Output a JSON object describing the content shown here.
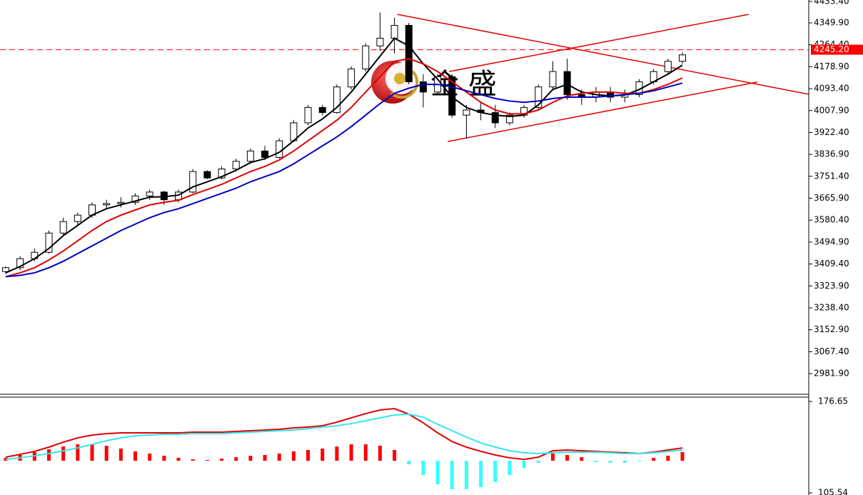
{
  "chart_data": [
    {
      "type": "candlestick",
      "open": [
        3380,
        3395,
        3430,
        3455,
        3530,
        3575,
        3600,
        3640,
        3645,
        3650,
        3675,
        3690,
        3660,
        3690,
        3770,
        3745,
        3780,
        3810,
        3850,
        3825,
        3890,
        3960,
        4020,
        4000,
        4100,
        4170,
        4260,
        4290,
        4340,
        4120,
        4080,
        4140,
        3990,
        4010,
        4000,
        3960,
        3990,
        4020,
        4100,
        4160,
        4070,
        4060,
        4080,
        4060,
        4070,
        4120,
        4160,
        4200
      ],
      "high": [
        3400,
        3440,
        3470,
        3540,
        3590,
        3610,
        3650,
        3660,
        3670,
        3685,
        3700,
        3695,
        3700,
        3780,
        3775,
        3790,
        3820,
        3860,
        3870,
        3900,
        3970,
        4030,
        4030,
        4110,
        4180,
        4270,
        4390,
        4370,
        4350,
        4150,
        4150,
        4150,
        4030,
        4040,
        4030,
        4000,
        4030,
        4110,
        4200,
        4210,
        4090,
        4100,
        4100,
        4090,
        4130,
        4170,
        4210,
        4235
      ],
      "low": [
        3370,
        3385,
        3420,
        3450,
        3520,
        3560,
        3590,
        3625,
        3630,
        3640,
        3660,
        3640,
        3650,
        3685,
        3740,
        3740,
        3770,
        3800,
        3815,
        3820,
        3885,
        3950,
        3990,
        3995,
        4090,
        4160,
        4240,
        4230,
        4110,
        4020,
        4070,
        3980,
        3900,
        3970,
        3940,
        3950,
        3980,
        4010,
        4090,
        4050,
        4030,
        4040,
        4040,
        4040,
        4060,
        4110,
        4150,
        4190
      ],
      "close": [
        3395,
        3430,
        3455,
        3530,
        3575,
        3600,
        3640,
        3645,
        3650,
        3675,
        3690,
        3660,
        3690,
        3770,
        3745,
        3780,
        3810,
        3850,
        3825,
        3890,
        3960,
        4020,
        4000,
        4100,
        4170,
        4260,
        4290,
        4340,
        4120,
        4080,
        4140,
        3990,
        4010,
        4000,
        3960,
        3990,
        4020,
        4100,
        4160,
        4070,
        4060,
        4080,
        4060,
        4070,
        4120,
        4160,
        4200,
        4225
      ],
      "up_color": "#ffffff",
      "down_color": "#000000",
      "series": [
        {
          "color": "#000000",
          "values": [
            3375,
            3400,
            3430,
            3470,
            3520,
            3560,
            3600,
            3625,
            3640,
            3655,
            3670,
            3672,
            3678,
            3710,
            3730,
            3750,
            3775,
            3805,
            3820,
            3845,
            3890,
            3940,
            3975,
            4020,
            4080,
            4150,
            4220,
            4290,
            4260,
            4190,
            4130,
            4060,
            4020,
            4000,
            3990,
            3985,
            3990,
            4030,
            4090,
            4110,
            4080,
            4070,
            4065,
            4068,
            4090,
            4120,
            4150,
            4185
          ]
        },
        {
          "color": "#e00000",
          "values": [
            3360,
            3375,
            3395,
            3425,
            3460,
            3500,
            3540,
            3575,
            3600,
            3620,
            3640,
            3650,
            3658,
            3680,
            3700,
            3720,
            3745,
            3770,
            3790,
            3815,
            3850,
            3890,
            3930,
            3970,
            4020,
            4080,
            4140,
            4200,
            4210,
            4190,
            4160,
            4120,
            4080,
            4040,
            4010,
            3995,
            3995,
            4010,
            4040,
            4065,
            4075,
            4080,
            4080,
            4075,
            4075,
            4090,
            4110,
            4135
          ]
        },
        {
          "color": "#0000c0",
          "values": [
            3360,
            3365,
            3375,
            3395,
            3420,
            3450,
            3480,
            3510,
            3540,
            3565,
            3590,
            3610,
            3625,
            3645,
            3665,
            3685,
            3705,
            3730,
            3750,
            3770,
            3800,
            3835,
            3870,
            3905,
            3945,
            3990,
            4035,
            4075,
            4095,
            4110,
            4110,
            4100,
            4085,
            4070,
            4055,
            4045,
            4040,
            4045,
            4055,
            4060,
            4060,
            4060,
            4065,
            4070,
            4075,
            4085,
            4100,
            4115
          ]
        }
      ],
      "trendlines": [
        {
          "color": "#e00000",
          "points": [
            [
              27.2,
              4383
            ],
            [
              55.8,
              4071
            ]
          ]
        },
        {
          "color": "#e00000",
          "points": [
            [
              30.7,
              3887
            ],
            [
              52.2,
              4119
            ]
          ]
        },
        {
          "color": "#e00000",
          "points": [
            [
              30.8,
              4160
            ],
            [
              51.6,
              4383
            ]
          ]
        }
      ],
      "price_line": {
        "value": 4245.2,
        "label": "4245.20",
        "color": "#ff0000"
      },
      "watermark": "金 盛",
      "ylim": [
        2901.3,
        4439.0
      ],
      "yticks": [
        {
          "value": 4433.4,
          "label": "4433.40"
        },
        {
          "value": 4349.9,
          "label": "4349.90"
        },
        {
          "value": 4264.4,
          "label": "4264.40"
        },
        {
          "value": 4178.9,
          "label": "4178.90"
        },
        {
          "value": 4093.4,
          "label": "4093.40"
        },
        {
          "value": 4007.9,
          "label": "4007.90"
        },
        {
          "value": 3922.4,
          "label": "3922.40"
        },
        {
          "value": 3836.9,
          "label": "3836.90"
        },
        {
          "value": 3751.4,
          "label": "3751.40"
        },
        {
          "value": 3665.9,
          "label": "3665.90"
        },
        {
          "value": 3580.4,
          "label": "3580.40"
        },
        {
          "value": 3494.9,
          "label": "3494.90"
        },
        {
          "value": 3409.4,
          "label": "3409.40"
        },
        {
          "value": 3323.9,
          "label": "3323.90"
        },
        {
          "value": 3238.4,
          "label": "3238.40"
        },
        {
          "value": 3152.9,
          "label": "3152.90"
        },
        {
          "value": 3067.4,
          "label": "3067.40"
        },
        {
          "value": 2981.9,
          "label": "2981.90"
        }
      ]
    },
    {
      "type": "macd",
      "histogram": {
        "baseline": 130.5,
        "up_color": "#ff0000",
        "down_color": "#33ffff",
        "values": [
          132.8,
          135.0,
          137.2,
          139.4,
          141.6,
          143.3,
          143.3,
          142.2,
          140.0,
          137.8,
          136.1,
          134.4,
          132.8,
          131.6,
          131.1,
          132.2,
          133.3,
          134.4,
          135.0,
          136.1,
          137.8,
          138.9,
          140.0,
          141.6,
          143.3,
          143.3,
          142.2,
          138.9,
          127.7,
          119.4,
          112.2,
          108.4,
          108.4,
          110.0,
          113.9,
          119.4,
          125.0,
          128.9,
          136.1,
          135.0,
          133.3,
          129.4,
          128.9,
          128.9,
          129.9,
          132.8,
          134.4,
          137.2
        ]
      },
      "series": [
        {
          "color": "#e00000",
          "values": [
            133.3,
            135.5,
            137.8,
            141.1,
            145.0,
            148.3,
            150.5,
            151.6,
            152.2,
            152.2,
            152.2,
            152.2,
            152.2,
            152.8,
            152.8,
            152.8,
            153.3,
            153.9,
            154.4,
            155.0,
            156.1,
            156.7,
            157.8,
            160.5,
            163.9,
            167.2,
            170.0,
            171.1,
            166.7,
            160.0,
            152.2,
            145.5,
            141.1,
            137.8,
            135.0,
            132.8,
            131.6,
            133.3,
            138.3,
            138.9,
            138.3,
            137.8,
            137.2,
            136.7,
            136.1,
            137.2,
            138.9,
            140.5
          ]
        },
        {
          "color": "#33e6f0",
          "values": [
            131.6,
            132.8,
            134.4,
            136.1,
            138.3,
            140.5,
            143.3,
            146.1,
            148.3,
            150.0,
            150.5,
            151.1,
            151.1,
            151.6,
            151.6,
            151.6,
            152.2,
            152.8,
            153.3,
            153.9,
            154.4,
            155.5,
            156.7,
            157.8,
            159.4,
            161.6,
            163.9,
            166.1,
            166.7,
            164.4,
            158.9,
            153.9,
            148.9,
            144.4,
            141.1,
            138.3,
            136.7,
            136.1,
            136.7,
            137.2,
            137.2,
            137.2,
            136.7,
            136.1,
            136.1,
            136.7,
            137.8,
            138.9
          ]
        }
      ],
      "ylim": [
        103.87,
        180.0
      ],
      "yticks": [
        {
          "value": 176.65,
          "label": "176.65"
        },
        {
          "value": 105.54,
          "label": "105.54"
        }
      ]
    }
  ]
}
